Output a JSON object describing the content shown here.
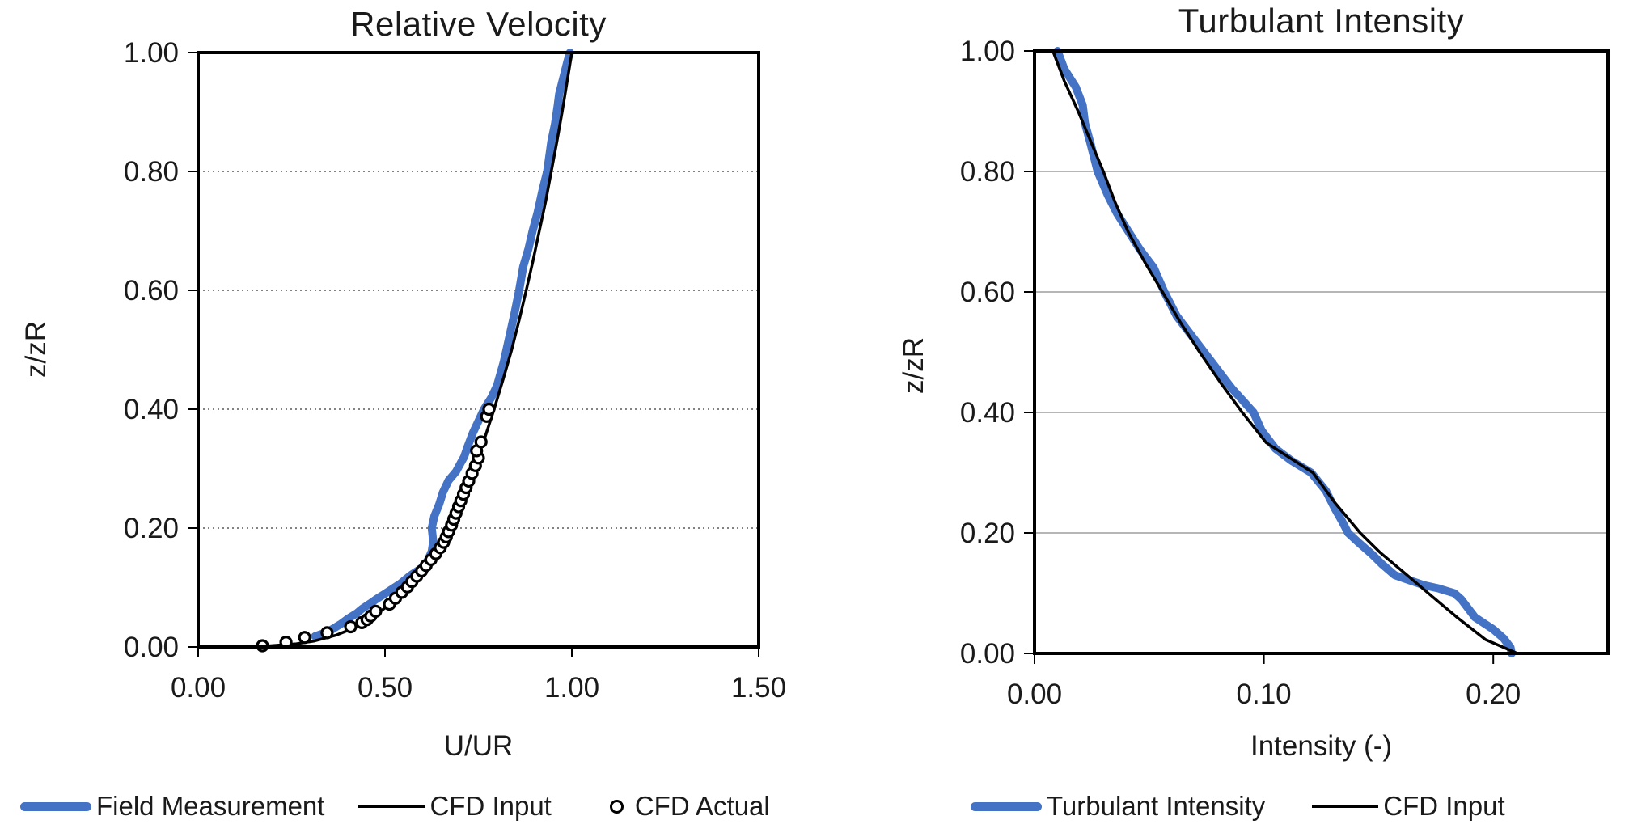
{
  "page": {
    "background": "#ffffff",
    "text_color": "#1a1a1a"
  },
  "colors": {
    "series_blue": "#4472C4",
    "series_black": "#000000",
    "grid_dotted": "#595959",
    "grid_solid": "#9d9d9d",
    "axis": "#000000"
  },
  "chart_data": [
    {
      "type": "line",
      "title": "Relative Velocity",
      "xlabel": "U/UR",
      "ylabel": "z/zR",
      "xlim": [
        0,
        1.5
      ],
      "ylim": [
        0,
        1.0
      ],
      "xticks": {
        "values": [
          0,
          0.5,
          1.0,
          1.5
        ],
        "labels": [
          "0.00",
          "0.50",
          "1.00",
          "1.50"
        ]
      },
      "yticks": {
        "values": [
          0,
          0.2,
          0.4,
          0.6,
          0.8,
          1.0
        ],
        "labels": [
          "0.00",
          "0.20",
          "0.40",
          "0.60",
          "0.80",
          "1.00"
        ]
      },
      "grid": {
        "axis": "y",
        "style": "dotted",
        "color": "#595959"
      },
      "legend_position": "bottom",
      "series": [
        {
          "name": "Field Measurement",
          "kind": "line",
          "color": "#4472C4",
          "width": 10,
          "points": [
            [
              0.3125,
              0.018
            ],
            [
              0.34,
              0.024
            ],
            [
              0.359,
              0.03
            ],
            [
              0.38,
              0.038
            ],
            [
              0.402,
              0.048
            ],
            [
              0.425,
              0.057
            ],
            [
              0.438,
              0.064
            ],
            [
              0.46,
              0.073
            ],
            [
              0.478,
              0.081
            ],
            [
              0.496,
              0.088
            ],
            [
              0.52,
              0.098
            ],
            [
              0.542,
              0.107
            ],
            [
              0.567,
              0.12
            ],
            [
              0.596,
              0.132
            ],
            [
              0.614,
              0.145
            ],
            [
              0.625,
              0.161
            ],
            [
              0.629,
              0.177
            ],
            [
              0.625,
              0.2
            ],
            [
              0.632,
              0.22
            ],
            [
              0.645,
              0.24
            ],
            [
              0.655,
              0.26
            ],
            [
              0.67,
              0.28
            ],
            [
              0.69,
              0.295
            ],
            [
              0.703,
              0.31
            ],
            [
              0.712,
              0.32
            ],
            [
              0.72,
              0.335
            ],
            [
              0.735,
              0.36
            ],
            [
              0.75,
              0.38
            ],
            [
              0.765,
              0.4
            ],
            [
              0.785,
              0.42
            ],
            [
              0.8,
              0.44
            ],
            [
              0.818,
              0.48
            ],
            [
              0.832,
              0.52
            ],
            [
              0.846,
              0.56
            ],
            [
              0.859,
              0.6
            ],
            [
              0.87,
              0.64
            ],
            [
              0.884,
              0.67
            ],
            [
              0.895,
              0.7
            ],
            [
              0.908,
              0.73
            ],
            [
              0.922,
              0.77
            ],
            [
              0.934,
              0.8
            ],
            [
              0.945,
              0.85
            ],
            [
              0.955,
              0.88
            ],
            [
              0.962,
              0.91
            ],
            [
              0.966,
              0.93
            ],
            [
              0.972,
              0.945
            ],
            [
              0.98,
              0.965
            ],
            [
              0.988,
              0.985
            ],
            [
              0.995,
              1.0
            ]
          ]
        },
        {
          "name": "CFD Input",
          "kind": "line",
          "color": "#000000",
          "width": 3.5,
          "points": [
            [
              0.0,
              0.0
            ],
            [
              0.173,
              0.001
            ],
            [
              0.26,
              0.005
            ],
            [
              0.311,
              0.01
            ],
            [
              0.37,
              0.02
            ],
            [
              0.41,
              0.03
            ],
            [
              0.467,
              0.05
            ],
            [
              0.509,
              0.07
            ],
            [
              0.542,
              0.09
            ],
            [
              0.584,
              0.12
            ],
            [
              0.618,
              0.15
            ],
            [
              0.647,
              0.18
            ],
            [
              0.681,
              0.22
            ],
            [
              0.71,
              0.26
            ],
            [
              0.737,
              0.3
            ],
            [
              0.766,
              0.35
            ],
            [
              0.792,
              0.4
            ],
            [
              0.816,
              0.45
            ],
            [
              0.839,
              0.5
            ],
            [
              0.859,
              0.55
            ],
            [
              0.878,
              0.6
            ],
            [
              0.896,
              0.65
            ],
            [
              0.913,
              0.7
            ],
            [
              0.93,
              0.75
            ],
            [
              0.945,
              0.8
            ],
            [
              0.96,
              0.85
            ],
            [
              0.974,
              0.9
            ],
            [
              0.987,
              0.95
            ],
            [
              1.0,
              1.0
            ]
          ]
        },
        {
          "name": "CFD Actual",
          "kind": "scatter",
          "color": "#000000",
          "marker": "open-circle",
          "size": 6.5,
          "points": [
            [
              0.172,
              0.002
            ],
            [
              0.235,
              0.008
            ],
            [
              0.285,
              0.016
            ],
            [
              0.345,
              0.024
            ],
            [
              0.408,
              0.034
            ],
            [
              0.438,
              0.041
            ],
            [
              0.452,
              0.046
            ],
            [
              0.462,
              0.052
            ],
            [
              0.475,
              0.06
            ],
            [
              0.512,
              0.072
            ],
            [
              0.528,
              0.082
            ],
            [
              0.545,
              0.092
            ],
            [
              0.56,
              0.101
            ],
            [
              0.572,
              0.11
            ],
            [
              0.585,
              0.119
            ],
            [
              0.598,
              0.128
            ],
            [
              0.61,
              0.137
            ],
            [
              0.623,
              0.147
            ],
            [
              0.636,
              0.157
            ],
            [
              0.648,
              0.167
            ],
            [
              0.657,
              0.176
            ],
            [
              0.664,
              0.185
            ],
            [
              0.67,
              0.194
            ],
            [
              0.678,
              0.205
            ],
            [
              0.684,
              0.215
            ],
            [
              0.69,
              0.225
            ],
            [
              0.697,
              0.236
            ],
            [
              0.703,
              0.246
            ],
            [
              0.71,
              0.257
            ],
            [
              0.717,
              0.268
            ],
            [
              0.724,
              0.279
            ],
            [
              0.733,
              0.292
            ],
            [
              0.742,
              0.305
            ],
            [
              0.75,
              0.318
            ],
            [
              0.745,
              0.33
            ],
            [
              0.757,
              0.345
            ],
            [
              0.772,
              0.388
            ],
            [
              0.778,
              0.4
            ]
          ]
        }
      ]
    },
    {
      "type": "line",
      "title": "Turbulant Intensity",
      "xlabel": "Intensity (-)",
      "ylabel": "z/zR",
      "xlim": [
        0,
        0.25
      ],
      "ylim": [
        0,
        1.0
      ],
      "xticks": {
        "values": [
          0,
          0.1,
          0.2
        ],
        "labels": [
          "0.00",
          "0.10",
          "0.20"
        ]
      },
      "yticks": {
        "values": [
          0,
          0.2,
          0.4,
          0.6,
          0.8,
          1.0
        ],
        "labels": [
          "0.00",
          "0.20",
          "0.40",
          "0.60",
          "0.80",
          "1.00"
        ]
      },
      "grid": {
        "axis": "y",
        "style": "solid",
        "color": "#9d9d9d"
      },
      "legend_position": "bottom",
      "series": [
        {
          "name": "Turbulant Intensity",
          "kind": "line",
          "color": "#4472C4",
          "width": 10,
          "points": [
            [
              0.208,
              0.0
            ],
            [
              0.2075,
              0.01
            ],
            [
              0.2045,
              0.025
            ],
            [
              0.2,
              0.04
            ],
            [
              0.196,
              0.05
            ],
            [
              0.192,
              0.06
            ],
            [
              0.189,
              0.075
            ],
            [
              0.186,
              0.09
            ],
            [
              0.183,
              0.1
            ],
            [
              0.176,
              0.108
            ],
            [
              0.17,
              0.113
            ],
            [
              0.163,
              0.122
            ],
            [
              0.157,
              0.13
            ],
            [
              0.1515,
              0.148
            ],
            [
              0.147,
              0.165
            ],
            [
              0.141,
              0.185
            ],
            [
              0.1367,
              0.2
            ],
            [
              0.134,
              0.22
            ],
            [
              0.131,
              0.24
            ],
            [
              0.127,
              0.27
            ],
            [
              0.1206,
              0.3
            ],
            [
              0.112,
              0.32
            ],
            [
              0.105,
              0.34
            ],
            [
              0.099,
              0.37
            ],
            [
              0.0955,
              0.4
            ],
            [
              0.086,
              0.44
            ],
            [
              0.078,
              0.48
            ],
            [
              0.07,
              0.52
            ],
            [
              0.062,
              0.56
            ],
            [
              0.0566,
              0.6
            ],
            [
              0.052,
              0.64
            ],
            [
              0.046,
              0.67
            ],
            [
              0.041,
              0.7
            ],
            [
              0.036,
              0.73
            ],
            [
              0.032,
              0.76
            ],
            [
              0.0275,
              0.8
            ],
            [
              0.0245,
              0.845
            ],
            [
              0.022,
              0.88
            ],
            [
              0.021,
              0.91
            ],
            [
              0.018,
              0.94
            ],
            [
              0.013,
              0.97
            ],
            [
              0.01,
              1.0
            ]
          ]
        },
        {
          "name": "CFD Input",
          "kind": "line",
          "color": "#000000",
          "width": 3.5,
          "points": [
            [
              0.2105,
              0.0
            ],
            [
              0.1966,
              0.023
            ],
            [
              0.1845,
              0.059
            ],
            [
              0.1732,
              0.095
            ],
            [
              0.1618,
              0.132
            ],
            [
              0.1505,
              0.168
            ],
            [
              0.142,
              0.2
            ],
            [
              0.131,
              0.25
            ],
            [
              0.1214,
              0.3
            ],
            [
              0.101,
              0.35
            ],
            [
              0.0906,
              0.4
            ],
            [
              0.081,
              0.45
            ],
            [
              0.072,
              0.5
            ],
            [
              0.0635,
              0.55
            ],
            [
              0.0558,
              0.6
            ],
            [
              0.048,
              0.65
            ],
            [
              0.0408,
              0.7
            ],
            [
              0.035,
              0.75
            ],
            [
              0.03,
              0.8
            ],
            [
              0.0245,
              0.85
            ],
            [
              0.019,
              0.9
            ],
            [
              0.013,
              0.95
            ],
            [
              0.008,
              1.0
            ]
          ]
        }
      ]
    }
  ],
  "legends": [
    {
      "items": [
        "Field Measurement",
        "CFD Input",
        "CFD Actual"
      ]
    },
    {
      "items": [
        "Turbulant Intensity",
        "CFD Input"
      ]
    }
  ]
}
